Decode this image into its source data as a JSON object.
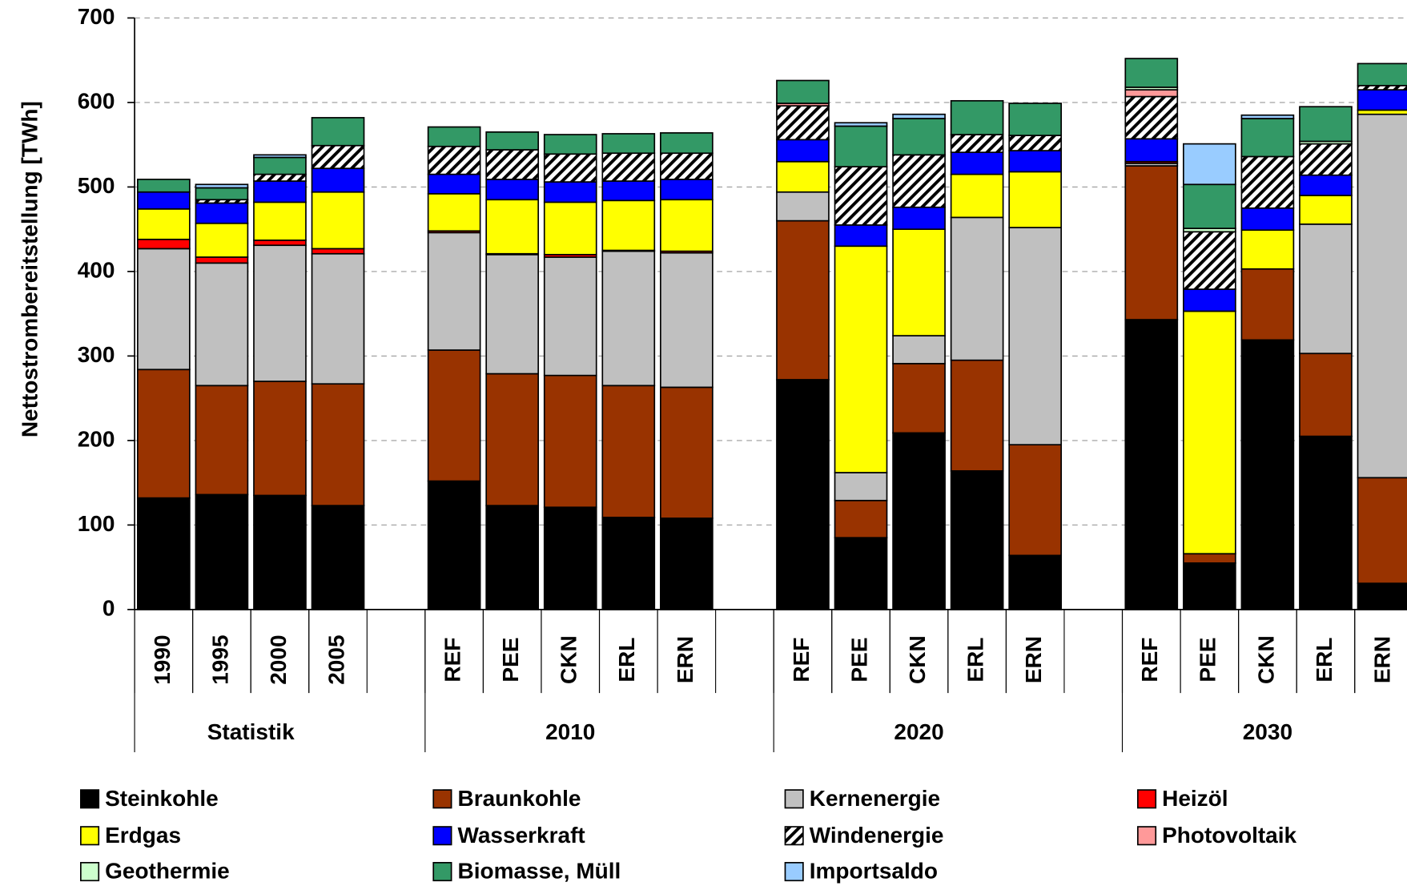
{
  "chart_data": {
    "type": "stacked_bar",
    "y_label": "Nettostrombereitstellung [TWh]",
    "ylim": [
      0,
      700
    ],
    "yticks": [
      0,
      100,
      200,
      300,
      400,
      500,
      600,
      700
    ],
    "grid": true,
    "legend": "bottom",
    "categories": [
      "1990",
      "1995",
      "2000",
      "2005",
      null,
      "REF",
      "PEE",
      "CKN",
      "ERL",
      "ERN",
      null,
      "REF",
      "PEE",
      "CKN",
      "ERL",
      "ERN",
      null,
      "REF",
      "PEE",
      "CKN",
      "ERL",
      "ERN"
    ],
    "groups": [
      "Statistik",
      "2010",
      "2020",
      "2030"
    ],
    "series": [
      {
        "name": "Steinkohle",
        "color": "#000000",
        "values": [
          132,
          136,
          135,
          123,
          null,
          152,
          123,
          121,
          109,
          108,
          null,
          272,
          85,
          209,
          164,
          64,
          null,
          343,
          55,
          319,
          205,
          31
        ]
      },
      {
        "name": "Braunkohle",
        "color": "#993300",
        "values": [
          152,
          129,
          135,
          144,
          null,
          155,
          156,
          156,
          156,
          155,
          null,
          188,
          44,
          82,
          131,
          131,
          null,
          182,
          11,
          84,
          98,
          125
        ]
      },
      {
        "name": "Kernenergie",
        "color": "#c0c0c0",
        "values": [
          143,
          145,
          161,
          154,
          null,
          139,
          141,
          140,
          159,
          159,
          null,
          34,
          33,
          33,
          169,
          257,
          null,
          3,
          0,
          0,
          153,
          430
        ]
      },
      {
        "name": "Heizöl",
        "color": "#ff0000",
        "values": [
          11,
          7,
          6,
          6,
          null,
          2,
          1,
          3,
          1,
          2,
          null,
          0,
          0,
          0,
          0,
          0,
          null,
          2,
          0,
          0,
          0,
          0
        ]
      },
      {
        "name": "Erdgas",
        "color": "#ffff00",
        "values": [
          36,
          40,
          45,
          67,
          null,
          44,
          64,
          62,
          59,
          61,
          null,
          36,
          268,
          126,
          51,
          66,
          null,
          0,
          287,
          46,
          34,
          5
        ]
      },
      {
        "name": "Wasserkraft",
        "color": "#0000ff",
        "values": [
          20,
          24,
          25,
          28,
          null,
          23,
          24,
          24,
          23,
          24,
          null,
          26,
          25,
          26,
          26,
          25,
          null,
          27,
          26,
          26,
          24,
          24
        ]
      },
      {
        "name": "Windenergie",
        "color": "#ffffff",
        "pattern": "hatch",
        "values": [
          0,
          4,
          8,
          27,
          null,
          33,
          35,
          33,
          33,
          31,
          null,
          40,
          69,
          62,
          21,
          18,
          null,
          50,
          68,
          61,
          37,
          5
        ]
      },
      {
        "name": "Photovoltaik",
        "color": "#ff9999",
        "values": [
          0,
          0,
          0,
          0,
          null,
          0,
          0,
          0,
          0,
          0,
          null,
          3,
          0,
          0,
          0,
          0,
          null,
          8,
          0,
          0,
          0,
          0
        ]
      },
      {
        "name": "Geothermie",
        "color": "#ccffcc",
        "values": [
          0,
          0,
          0,
          0,
          null,
          0,
          0,
          0,
          0,
          0,
          null,
          0,
          0,
          0,
          0,
          0,
          null,
          3,
          4,
          0,
          3,
          0
        ]
      },
      {
        "name": "Biomasse, Müll",
        "color": "#339966",
        "values": [
          15,
          14,
          20,
          33,
          null,
          23,
          21,
          23,
          23,
          24,
          null,
          27,
          48,
          43,
          40,
          38,
          null,
          34,
          52,
          45,
          41,
          26
        ]
      },
      {
        "name": "Importsaldo",
        "color": "#99ccff",
        "values": [
          0,
          4,
          3,
          0,
          null,
          0,
          0,
          0,
          0,
          0,
          null,
          0,
          4,
          5,
          0,
          0,
          null,
          0,
          48,
          4,
          0,
          0
        ]
      }
    ]
  }
}
